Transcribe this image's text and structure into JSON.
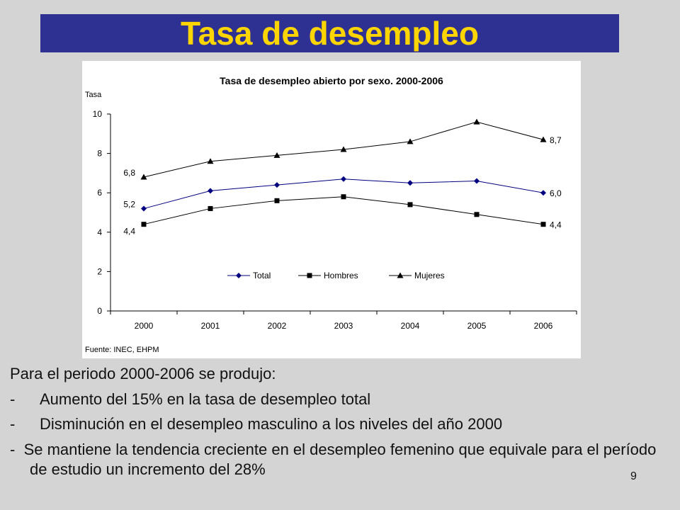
{
  "slide": {
    "title": "Tasa de desempleo",
    "title_color": "#ffd500",
    "title_bar_color": "#2e3192",
    "background_color": "#d4d4d4",
    "page_number": "9"
  },
  "text": {
    "intro": "Para el periodo 2000-2006 se produjo:",
    "bullet_marker": "-",
    "bullets": [
      "Aumento del 15% en la tasa de desempleo total",
      "Disminución en el desempleo masculino a los niveles del año 2000",
      "Se mantiene la tendencia creciente en el desempleo femenino que equivale para el período de estudio un incremento del 28%"
    ]
  },
  "chart_data": {
    "type": "line",
    "title": "Tasa de desempleo abierto por sexo. 2000-2006",
    "ylabel": "Tasa",
    "xlabel": "",
    "source": "Fuente: INEC, EHPM",
    "categories": [
      "2000",
      "2001",
      "2002",
      "2003",
      "2004",
      "2005",
      "2006"
    ],
    "ylim": [
      0,
      10
    ],
    "yticks": [
      0,
      2,
      4,
      6,
      8,
      10
    ],
    "grid": false,
    "legend_position": "bottom-center inside plot",
    "series": [
      {
        "name": "Total",
        "marker": "diamond",
        "color": "#000080",
        "values": [
          5.2,
          6.1,
          6.4,
          6.7,
          6.5,
          6.6,
          6.0
        ],
        "labels": {
          "0": "5,2",
          "6": "6,0"
        }
      },
      {
        "name": "Hombres",
        "marker": "square",
        "color": "#000000",
        "values": [
          4.4,
          5.2,
          5.6,
          5.8,
          5.4,
          4.9,
          4.4
        ],
        "labels": {
          "0": "4,4",
          "6": "4,4"
        }
      },
      {
        "name": "Mujeres",
        "marker": "triangle",
        "color": "#000000",
        "values": [
          6.8,
          7.6,
          7.9,
          8.2,
          8.6,
          9.6,
          8.7
        ],
        "labels": {
          "0": "6,8",
          "6": "8,7"
        }
      }
    ]
  }
}
